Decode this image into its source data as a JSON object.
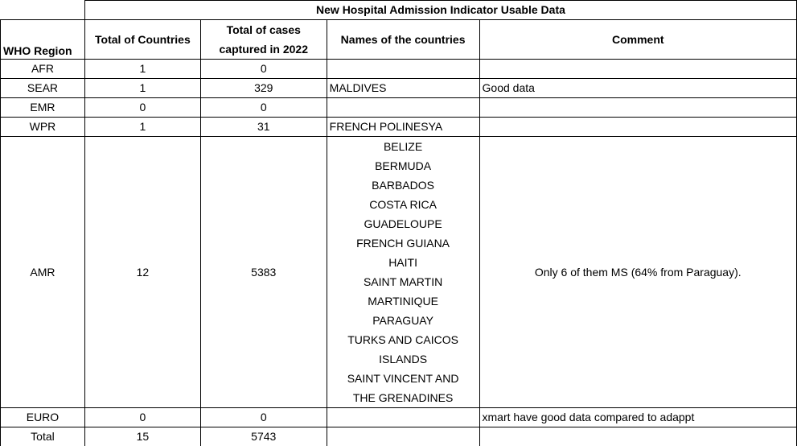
{
  "sheet_title": "New Hospital Admission Indicator Usable Data",
  "headers": {
    "region": "WHO Region",
    "total_countries": "Total of Countries",
    "total_cases_line1": "Total  of cases",
    "total_cases_line2": "captured in 2022",
    "names": "Names of the countries",
    "comment": "Comment"
  },
  "rows": [
    {
      "region": "AFR",
      "count": "1",
      "cases": "0",
      "names": "",
      "comment": ""
    },
    {
      "region": "SEAR",
      "count": "1",
      "cases": "329",
      "names": "MALDIVES",
      "comment": "Good data"
    },
    {
      "region": "EMR",
      "count": "0",
      "cases": "0",
      "names": "",
      "comment": ""
    },
    {
      "region": "WPR",
      "count": "1",
      "cases": "31",
      "names": "FRENCH POLINESYA",
      "comment": ""
    }
  ],
  "amr": {
    "region": "AMR",
    "count": "12",
    "cases": "5383",
    "names": [
      "BELIZE",
      "BERMUDA",
      "BARBADOS",
      "COSTA RICA",
      "GUADELOUPE",
      "FRENCH GUIANA",
      "HAITI",
      "SAINT MARTIN",
      "MARTINIQUE",
      "PARAGUAY",
      "TURKS AND CAICOS",
      "ISLANDS",
      "SAINT VINCENT AND",
      "THE GRENADINES"
    ],
    "comment": "Only 6 of them MS (64% from Paraguay)."
  },
  "euro": {
    "region": "EURO",
    "count": "0",
    "cases": "0",
    "names": "",
    "comment": "xmart have good data compared to adappt"
  },
  "total": {
    "region": "Total",
    "count": "15",
    "cases": "5743",
    "names": "",
    "comment": ""
  }
}
